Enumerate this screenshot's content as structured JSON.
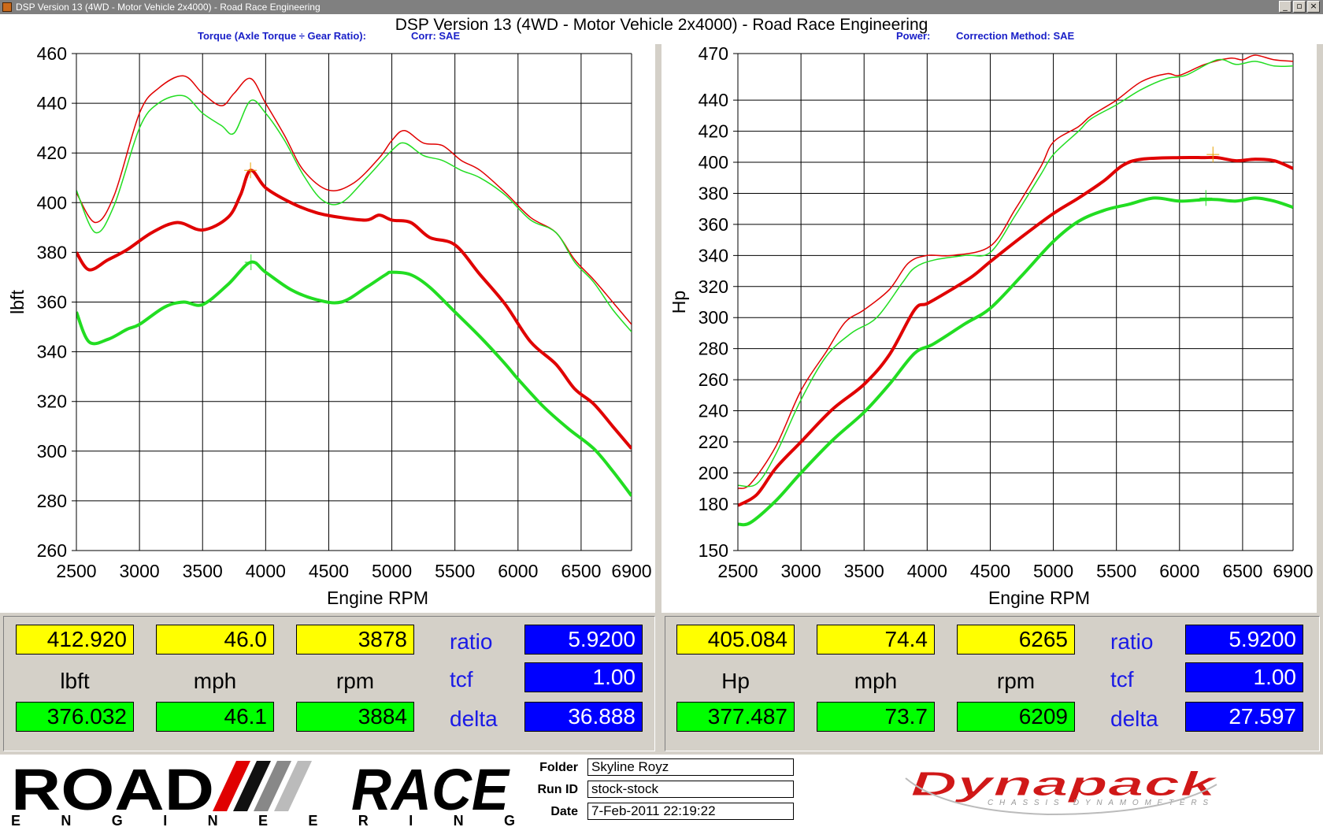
{
  "window": {
    "title": "DSP Version 13 (4WD - Motor Vehicle 2x4000) - Road Race Engineering",
    "buttons": [
      "_",
      "▫",
      "×"
    ]
  },
  "header": {
    "title": "DSP Version 13 (4WD - Motor Vehicle 2x4000) - Road Race Engineering",
    "torque_label": "Torque (Axle Torque ÷ Gear Ratio):",
    "torque_corr": "Corr: SAE",
    "power_label": "Power:",
    "power_corr": "Correction Method: SAE"
  },
  "colors": {
    "red": "#e00000",
    "green": "#22dd22",
    "yellow": "#ffff00",
    "blue": "#0000ff"
  },
  "chart_data": [
    {
      "type": "line",
      "title": "",
      "xlabel": "Engine RPM",
      "ylabel": "lbft",
      "xlim": [
        2500,
        6900
      ],
      "ylim": [
        260,
        460
      ],
      "xticks": [
        2500,
        3000,
        3500,
        4000,
        4500,
        5000,
        5500,
        6000,
        6500,
        6900
      ],
      "yticks": [
        260,
        280,
        300,
        320,
        340,
        360,
        380,
        400,
        420,
        440,
        460
      ],
      "grid": true,
      "series": [
        {
          "color": "#e00000",
          "width": 1.5,
          "points": [
            [
              2500,
              404
            ],
            [
              2650,
              392
            ],
            [
              2800,
              403
            ],
            [
              3000,
              436
            ],
            [
              3150,
              446
            ],
            [
              3350,
              451
            ],
            [
              3500,
              444
            ],
            [
              3650,
              439
            ],
            [
              3750,
              444
            ],
            [
              3880,
              450
            ],
            [
              4000,
              440
            ],
            [
              4150,
              427
            ],
            [
              4300,
              413
            ],
            [
              4500,
              405
            ],
            [
              4700,
              408
            ],
            [
              4900,
              418
            ],
            [
              5000,
              425
            ],
            [
              5100,
              429
            ],
            [
              5250,
              424
            ],
            [
              5400,
              423
            ],
            [
              5550,
              417
            ],
            [
              5700,
              413
            ],
            [
              5900,
              404
            ],
            [
              6100,
              394
            ],
            [
              6300,
              388
            ],
            [
              6450,
              377
            ],
            [
              6600,
              369
            ],
            [
              6750,
              360
            ],
            [
              6900,
              351
            ]
          ]
        },
        {
          "color": "#22dd22",
          "width": 1.5,
          "points": [
            [
              2500,
              405
            ],
            [
              2650,
              388
            ],
            [
              2800,
              399
            ],
            [
              3000,
              430
            ],
            [
              3150,
              440
            ],
            [
              3350,
              443
            ],
            [
              3500,
              436
            ],
            [
              3650,
              431
            ],
            [
              3750,
              428
            ],
            [
              3880,
              441
            ],
            [
              4000,
              436
            ],
            [
              4150,
              425
            ],
            [
              4300,
              411
            ],
            [
              4450,
              401
            ],
            [
              4600,
              400
            ],
            [
              4800,
              410
            ],
            [
              5000,
              421
            ],
            [
              5100,
              424
            ],
            [
              5250,
              419
            ],
            [
              5400,
              417
            ],
            [
              5550,
              413
            ],
            [
              5700,
              410
            ],
            [
              5900,
              403
            ],
            [
              6100,
              393
            ],
            [
              6300,
              388
            ],
            [
              6450,
              376
            ],
            [
              6600,
              368
            ],
            [
              6750,
              357
            ],
            [
              6900,
              348
            ]
          ]
        },
        {
          "color": "#e00000",
          "width": 4,
          "points": [
            [
              2500,
              380
            ],
            [
              2600,
              373
            ],
            [
              2750,
              377
            ],
            [
              2900,
              381
            ],
            [
              3100,
              388
            ],
            [
              3300,
              392
            ],
            [
              3500,
              389
            ],
            [
              3700,
              394
            ],
            [
              3800,
              403
            ],
            [
              3880,
              413
            ],
            [
              4000,
              406
            ],
            [
              4200,
              400
            ],
            [
              4400,
              396
            ],
            [
              4600,
              394
            ],
            [
              4800,
              393
            ],
            [
              4900,
              395
            ],
            [
              5000,
              393
            ],
            [
              5150,
              392
            ],
            [
              5300,
              386
            ],
            [
              5500,
              383
            ],
            [
              5700,
              371
            ],
            [
              5900,
              359
            ],
            [
              6100,
              344
            ],
            [
              6300,
              335
            ],
            [
              6450,
              325
            ],
            [
              6600,
              319
            ],
            [
              6750,
              310
            ],
            [
              6900,
              301
            ]
          ]
        },
        {
          "color": "#22dd22",
          "width": 4,
          "points": [
            [
              2500,
              356
            ],
            [
              2600,
              344
            ],
            [
              2750,
              345
            ],
            [
              2900,
              349
            ],
            [
              3000,
              351
            ],
            [
              3200,
              358
            ],
            [
              3350,
              360
            ],
            [
              3500,
              359
            ],
            [
              3700,
              367
            ],
            [
              3880,
              376
            ],
            [
              4000,
              372
            ],
            [
              4200,
              365
            ],
            [
              4400,
              361
            ],
            [
              4600,
              360
            ],
            [
              4800,
              366
            ],
            [
              4950,
              371
            ],
            [
              5000,
              372
            ],
            [
              5150,
              371
            ],
            [
              5300,
              366
            ],
            [
              5500,
              356
            ],
            [
              5700,
              346
            ],
            [
              5900,
              335
            ],
            [
              6000,
              329
            ],
            [
              6200,
              318
            ],
            [
              6400,
              309
            ],
            [
              6600,
              301
            ],
            [
              6750,
              292
            ],
            [
              6900,
              282
            ]
          ]
        }
      ],
      "markers": [
        {
          "x": 3880,
          "y": 413,
          "color": "#e8a000"
        },
        {
          "x": 3884,
          "y": 376,
          "color": "#22dd22"
        }
      ]
    },
    {
      "type": "line",
      "title": "",
      "xlabel": "Engine RPM",
      "ylabel": "Hp",
      "xlim": [
        2500,
        6900
      ],
      "ylim": [
        150,
        470
      ],
      "xticks": [
        2500,
        3000,
        3500,
        4000,
        4500,
        5000,
        5500,
        6000,
        6500,
        6900
      ],
      "yticks": [
        150,
        180,
        200,
        220,
        240,
        260,
        280,
        300,
        320,
        340,
        360,
        380,
        400,
        420,
        440,
        470
      ],
      "grid": true,
      "series": [
        {
          "color": "#e00000",
          "width": 1.5,
          "points": [
            [
              2500,
              190
            ],
            [
              2600,
              193
            ],
            [
              2800,
              217
            ],
            [
              3000,
              253
            ],
            [
              3200,
              278
            ],
            [
              3350,
              297
            ],
            [
              3500,
              305
            ],
            [
              3700,
              318
            ],
            [
              3850,
              335
            ],
            [
              4000,
              340
            ],
            [
              4200,
              340
            ],
            [
              4500,
              346
            ],
            [
              4700,
              370
            ],
            [
              4900,
              397
            ],
            [
              5000,
              413
            ],
            [
              5200,
              423
            ],
            [
              5300,
              430
            ],
            [
              5500,
              440
            ],
            [
              5700,
              452
            ],
            [
              5900,
              457
            ],
            [
              6000,
              456
            ],
            [
              6200,
              463
            ],
            [
              6400,
              467
            ],
            [
              6500,
              466
            ],
            [
              6600,
              469
            ],
            [
              6750,
              466
            ],
            [
              6900,
              465
            ]
          ]
        },
        {
          "color": "#22dd22",
          "width": 1.5,
          "points": [
            [
              2500,
              192
            ],
            [
              2650,
              193
            ],
            [
              2800,
              212
            ],
            [
              3000,
              247
            ],
            [
              3200,
              275
            ],
            [
              3400,
              290
            ],
            [
              3600,
              300
            ],
            [
              3800,
              322
            ],
            [
              3900,
              332
            ],
            [
              4050,
              337
            ],
            [
              4300,
              340
            ],
            [
              4500,
              342
            ],
            [
              4700,
              366
            ],
            [
              4900,
              392
            ],
            [
              5000,
              405
            ],
            [
              5200,
              420
            ],
            [
              5300,
              428
            ],
            [
              5500,
              437
            ],
            [
              5700,
              447
            ],
            [
              5900,
              454
            ],
            [
              6050,
              456
            ],
            [
              6300,
              466
            ],
            [
              6450,
              463
            ],
            [
              6600,
              465
            ],
            [
              6750,
              462
            ],
            [
              6900,
              462
            ]
          ]
        },
        {
          "color": "#e00000",
          "width": 4,
          "points": [
            [
              2500,
              179
            ],
            [
              2650,
              186
            ],
            [
              2800,
              203
            ],
            [
              3000,
              220
            ],
            [
              3250,
              241
            ],
            [
              3500,
              257
            ],
            [
              3700,
              276
            ],
            [
              3900,
              305
            ],
            [
              4000,
              309
            ],
            [
              4150,
              316
            ],
            [
              4350,
              326
            ],
            [
              4500,
              336
            ],
            [
              4750,
              352
            ],
            [
              5000,
              367
            ],
            [
              5200,
              377
            ],
            [
              5400,
              388
            ],
            [
              5550,
              398
            ],
            [
              5700,
              402
            ],
            [
              6000,
              403
            ],
            [
              6200,
              403
            ],
            [
              6300,
              403
            ],
            [
              6450,
              401
            ],
            [
              6600,
              402
            ],
            [
              6750,
              401
            ],
            [
              6900,
              396
            ]
          ]
        },
        {
          "color": "#22dd22",
          "width": 4,
          "points": [
            [
              2500,
              167
            ],
            [
              2600,
              168
            ],
            [
              2800,
              182
            ],
            [
              3000,
              200
            ],
            [
              3250,
              221
            ],
            [
              3500,
              239
            ],
            [
              3700,
              257
            ],
            [
              3900,
              277
            ],
            [
              4050,
              283
            ],
            [
              4300,
              296
            ],
            [
              4500,
              306
            ],
            [
              4750,
              327
            ],
            [
              5000,
              349
            ],
            [
              5200,
              362
            ],
            [
              5400,
              369
            ],
            [
              5600,
              373
            ],
            [
              5800,
              377
            ],
            [
              6000,
              375
            ],
            [
              6200,
              376
            ],
            [
              6300,
              376
            ],
            [
              6450,
              375
            ],
            [
              6600,
              377
            ],
            [
              6750,
              375
            ],
            [
              6900,
              371
            ]
          ]
        }
      ],
      "markers": [
        {
          "x": 6265,
          "y": 405,
          "color": "#e8a000"
        },
        {
          "x": 6209,
          "y": 377,
          "color": "#22dd22"
        }
      ]
    }
  ],
  "readouts": [
    {
      "top_value": "412.920",
      "top_speed": "46.0",
      "top_rpm": "3878",
      "unit": "lbft",
      "speed_unit": "mph",
      "rpm_unit": "rpm",
      "bottom_value": "376.032",
      "bottom_speed": "46.1",
      "bottom_rpm": "3884",
      "ratio_label": "ratio",
      "ratio": "5.9200",
      "tcf_label": "tcf",
      "tcf": "1.00",
      "delta_label": "delta",
      "delta": "36.888"
    },
    {
      "top_value": "405.084",
      "top_speed": "74.4",
      "top_rpm": "6265",
      "unit": "Hp",
      "speed_unit": "mph",
      "rpm_unit": "rpm",
      "bottom_value": "377.487",
      "bottom_speed": "73.7",
      "bottom_rpm": "6209",
      "ratio_label": "ratio",
      "ratio": "5.9200",
      "tcf_label": "tcf",
      "tcf": "1.00",
      "delta_label": "delta",
      "delta": "27.597"
    }
  ],
  "footer": {
    "logo_road": "ROAD",
    "logo_race": "RACE",
    "logo_engineering": "E N G I N E E R I N G",
    "folder_label": "Folder",
    "folder": "Skyline Royz",
    "runid_label": "Run ID",
    "runid": "stock-stock",
    "date_label": "Date",
    "date": "7-Feb-2011 22:19:22",
    "dynapack": "Dynapack",
    "dynapack_sub": "CHASSIS DYNAMOMETERS"
  }
}
